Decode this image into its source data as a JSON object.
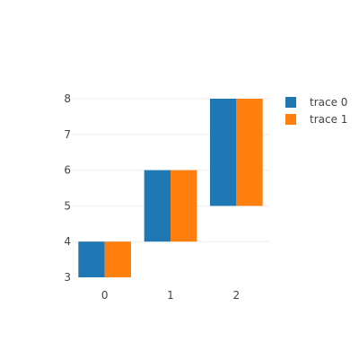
{
  "chart_data": {
    "type": "bar",
    "orientation": "vertical",
    "barmode": "group",
    "categories": [
      "0",
      "1",
      "2"
    ],
    "series": [
      {
        "name": "trace 0",
        "color": "#1f77b4",
        "values": [
          {
            "base": 3,
            "top": 4
          },
          {
            "base": 4,
            "top": 6
          },
          {
            "base": 5,
            "top": 8
          }
        ]
      },
      {
        "name": "trace 1",
        "color": "#ff7f0e",
        "values": [
          {
            "base": 3,
            "top": 4
          },
          {
            "base": 4,
            "top": 6
          },
          {
            "base": 5,
            "top": 8
          }
        ]
      }
    ],
    "ylim": [
      3,
      8
    ],
    "y_ticks": [
      3,
      4,
      5,
      6,
      7,
      8
    ],
    "x_tick_labels": [
      "0",
      "1",
      "2"
    ],
    "grid": true,
    "legend_position": "top-right",
    "title": "",
    "xlabel": "",
    "ylabel": ""
  }
}
